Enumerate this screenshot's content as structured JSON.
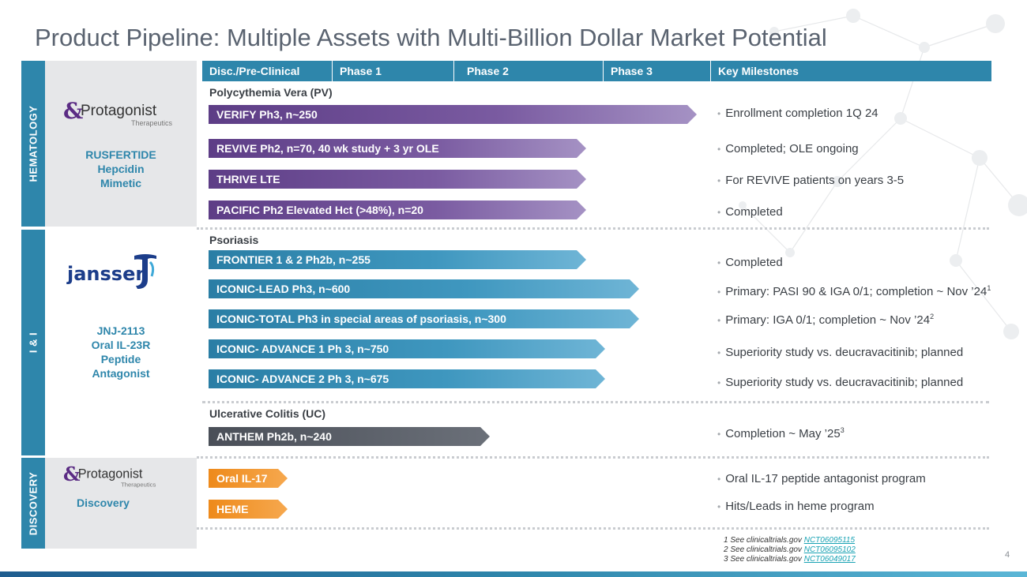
{
  "title": "Product Pipeline: Multiple Assets with Multi-Billion Dollar Market Potential",
  "header": {
    "columns": [
      "Disc./Pre-Clinical",
      "Phase 1",
      "Phase 2",
      "Phase 3",
      "Key Milestones"
    ]
  },
  "bands": {
    "hematology": "HEMATOLOGY",
    "ii": "I & I",
    "discovery": "DISCOVERY"
  },
  "logos": {
    "protagonist_name": "Protagonist",
    "protagonist_sub": "Therapeutics",
    "janssen": "janssen"
  },
  "products": {
    "rusfertide": [
      "RUSFERTIDE",
      "Hepcidin",
      "Mimetic"
    ],
    "jnj": [
      "JNJ-2113",
      "Oral IL-23R",
      "Peptide",
      "Antagonist"
    ],
    "discovery": "Discovery"
  },
  "sections": {
    "pv": "Polycythemia Vera (PV)",
    "psoriasis": "Psoriasis",
    "uc": "Ulcerative Colitis (UC)"
  },
  "programs": [
    {
      "label": "VERIFY Ph3, n~250",
      "progress_percent": 100,
      "milestone": "Enrollment completion 1Q 24",
      "sup": ""
    },
    {
      "label": "REVIVE Ph2, n=70, 40 wk study + 3 yr OLE",
      "progress_percent": 77,
      "milestone": "Completed; OLE ongoing",
      "sup": ""
    },
    {
      "label": "THRIVE LTE",
      "progress_percent": 77,
      "milestone": "For REVIVE patients on years 3-5",
      "sup": ""
    },
    {
      "label": "PACIFIC Ph2 Elevated Hct (>48%), n=20",
      "progress_percent": 77,
      "milestone": "Completed",
      "sup": ""
    },
    {
      "label": "FRONTIER 1 & 2 Ph2b, n~255",
      "progress_percent": 77,
      "milestone": "Completed",
      "sup": ""
    },
    {
      "label": "ICONIC-LEAD Ph3, n~600",
      "progress_percent": 88,
      "milestone": "Primary: PASI 90 & IGA 0/1; completion ~ Nov ’24",
      "sup": "1"
    },
    {
      "label": "ICONIC-TOTAL Ph3 in special areas of psoriasis, n~300",
      "progress_percent": 88,
      "milestone": "Primary: IGA 0/1; completion ~ Nov ’24",
      "sup": "2"
    },
    {
      "label": "ICONIC- ADVANCE 1 Ph 3, n~750",
      "progress_percent": 81,
      "milestone": "Superiority study vs. deucravacitinib; planned",
      "sup": ""
    },
    {
      "label": "ICONIC- ADVANCE 2 Ph 3, n~675",
      "progress_percent": 81,
      "milestone": "Superiority study vs. deucravacitinib; planned",
      "sup": ""
    },
    {
      "label": "ANTHEM Ph2b, n~240",
      "progress_percent": 57,
      "milestone": "Completion ~ May ’25",
      "sup": "3"
    },
    {
      "label": "Oral IL-17",
      "progress_percent": 15,
      "milestone": "Oral IL-17 peptide antagonist program",
      "sup": ""
    },
    {
      "label": "HEME",
      "progress_percent": 15,
      "milestone": "Hits/Leads in heme program",
      "sup": ""
    }
  ],
  "footnotes": [
    {
      "text": "1 See clinicaltrials.gov ",
      "link": "NCT06095115"
    },
    {
      "text": "2 See clinicaltrials.gov ",
      "link": "NCT06095102"
    },
    {
      "text": "3 See clinicaltrials.gov ",
      "link": "NCT06049017"
    }
  ],
  "page_number": "4",
  "colors": {
    "header_blue": "#2e86ab",
    "purple": "#5d3d86",
    "blue": "#2a7ea5",
    "gray": "#4a4f58",
    "orange": "#ee8a1b"
  }
}
